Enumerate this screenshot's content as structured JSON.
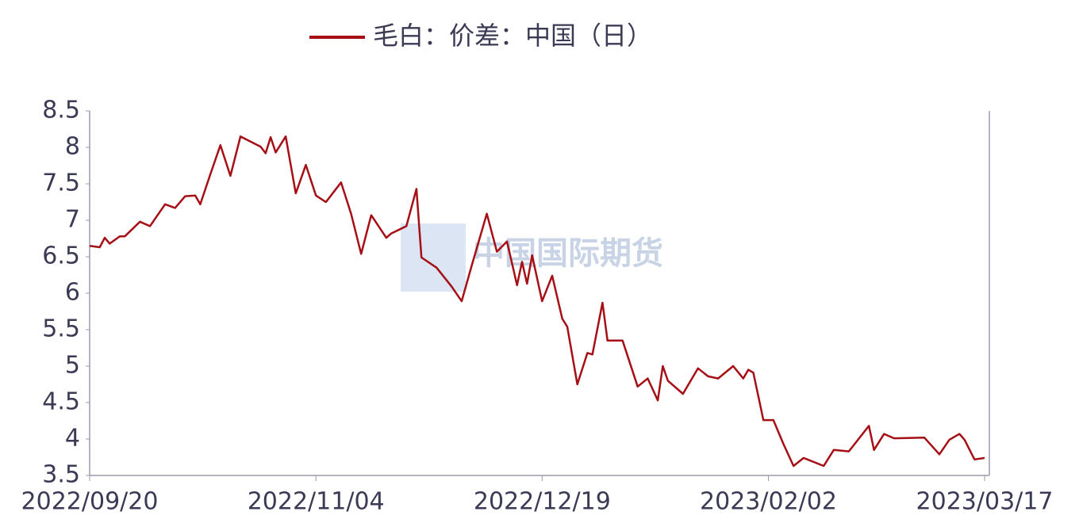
{
  "watermark": "中国国际期货",
  "chart_data": {
    "type": "line",
    "x": [
      "2022/09/20",
      "2022/09/22",
      "2022/09/23",
      "2022/09/24",
      "2022/09/26",
      "2022/09/27",
      "2022/09/30",
      "2022/10/02",
      "2022/10/05",
      "2022/10/07",
      "2022/10/09",
      "2022/10/11",
      "2022/10/12",
      "2022/10/14",
      "2022/10/16",
      "2022/10/18",
      "2022/10/20",
      "2022/10/24",
      "2022/10/25",
      "2022/10/26",
      "2022/10/27",
      "2022/10/29",
      "2022/10/31",
      "2022/11/02",
      "2022/11/04",
      "2022/11/06",
      "2022/11/09",
      "2022/11/11",
      "2022/11/13",
      "2022/11/15",
      "2022/11/18",
      "2022/11/19",
      "2022/11/22",
      "2022/11/24",
      "2022/11/25",
      "2022/11/28",
      "2022/12/01",
      "2022/12/03",
      "2022/12/05",
      "2022/12/08",
      "2022/12/10",
      "2022/12/12",
      "2022/12/14",
      "2022/12/15",
      "2022/12/16",
      "2022/12/17",
      "2022/12/19",
      "2022/12/21",
      "2022/12/23",
      "2022/12/24",
      "2022/12/26",
      "2022/12/28",
      "2022/12/29",
      "2022/12/31",
      "2023/01/01",
      "2023/01/04",
      "2023/01/07",
      "2023/01/09",
      "2023/01/11",
      "2023/01/12",
      "2023/01/13",
      "2023/01/16",
      "2023/01/19",
      "2023/01/21",
      "2023/01/23",
      "2023/01/26",
      "2023/01/28",
      "2023/01/29",
      "2023/01/30",
      "2023/02/01",
      "2023/02/03",
      "2023/02/05",
      "2023/02/07",
      "2023/02/09",
      "2023/02/13",
      "2023/02/15",
      "2023/02/18",
      "2023/02/22",
      "2023/02/23",
      "2023/02/25",
      "2023/02/27",
      "2023/03/05",
      "2023/03/08",
      "2023/03/10",
      "2023/03/12",
      "2023/03/13",
      "2023/03/15",
      "2023/03/17"
    ],
    "series": [
      {
        "name": "毛白：价差：中国（日）",
        "color": "#a50f15",
        "values": [
          6.65,
          6.63,
          6.76,
          6.68,
          6.78,
          6.78,
          6.98,
          6.92,
          7.22,
          7.17,
          7.33,
          7.34,
          7.22,
          7.63,
          8.03,
          7.61,
          8.15,
          8.01,
          7.92,
          8.14,
          7.93,
          8.15,
          7.37,
          7.76,
          7.34,
          7.25,
          7.52,
          7.09,
          6.54,
          7.07,
          6.76,
          6.82,
          6.92,
          7.43,
          6.49,
          6.35,
          6.09,
          5.89,
          6.38,
          7.09,
          6.57,
          6.71,
          6.11,
          6.43,
          6.13,
          6.52,
          5.89,
          6.24,
          5.65,
          5.54,
          4.75,
          5.18,
          5.16,
          5.87,
          5.35,
          5.35,
          4.72,
          4.83,
          4.53,
          5.0,
          4.8,
          4.62,
          4.97,
          4.86,
          4.83,
          5.0,
          4.83,
          4.95,
          4.91,
          4.26,
          4.26,
          3.93,
          3.63,
          3.74,
          3.63,
          3.85,
          3.83,
          4.18,
          3.85,
          4.07,
          4.01,
          4.02,
          3.79,
          3.99,
          4.07,
          3.99,
          3.72,
          3.74
        ]
      }
    ],
    "xlim": [
      "2022/09/20",
      "2023/03/17"
    ],
    "xticks": [
      "2022/09/20",
      "2022/11/04",
      "2022/12/19",
      "2023/02/02",
      "2023/03/17"
    ],
    "ylim": [
      3.5,
      8.5
    ],
    "yticks": [
      3.5,
      4,
      4.5,
      5,
      5.5,
      6,
      6.5,
      7,
      7.5,
      8,
      8.5
    ]
  }
}
